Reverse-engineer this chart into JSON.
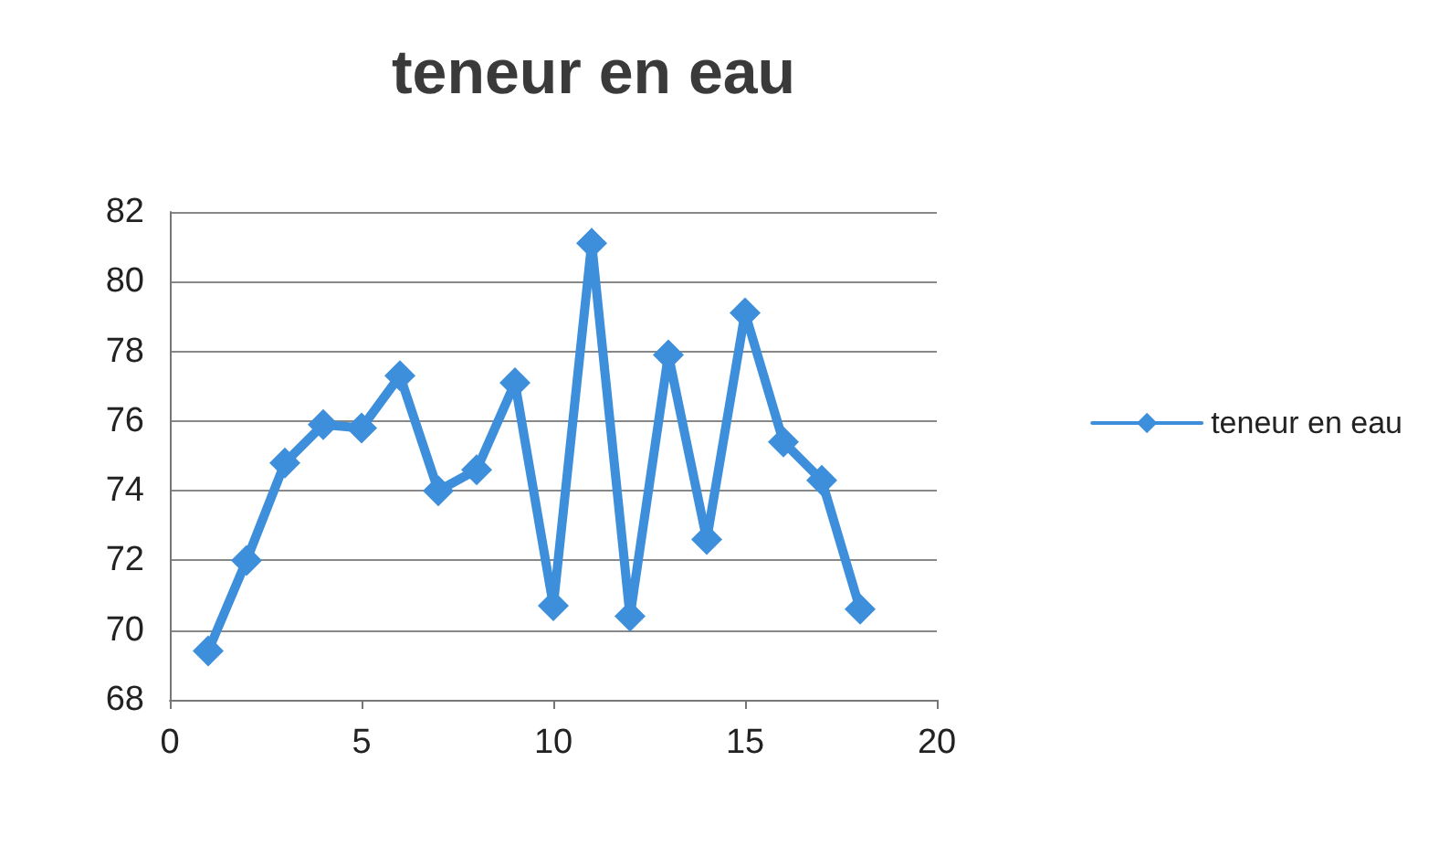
{
  "chart_data": {
    "type": "line",
    "title": "teneur en eau",
    "x": [
      1,
      2,
      3,
      4,
      5,
      6,
      7,
      8,
      9,
      10,
      11,
      12,
      13,
      14,
      15,
      16,
      17,
      18
    ],
    "series": [
      {
        "name": "teneur en eau",
        "color": "#3d8fdc",
        "values": [
          69.4,
          72.0,
          74.8,
          75.9,
          75.8,
          77.3,
          74.0,
          74.6,
          77.1,
          70.7,
          81.1,
          70.4,
          77.9,
          72.6,
          79.1,
          75.4,
          74.3,
          70.6
        ]
      }
    ],
    "xlim": [
      0,
      20
    ],
    "xticks": [
      0,
      5,
      10,
      15,
      20
    ],
    "ylim": [
      68,
      82
    ],
    "yticks": [
      68,
      70,
      72,
      74,
      76,
      78,
      80,
      82
    ],
    "grid": "y",
    "legend": "right",
    "marker": "diamond",
    "line_style": "solid"
  }
}
